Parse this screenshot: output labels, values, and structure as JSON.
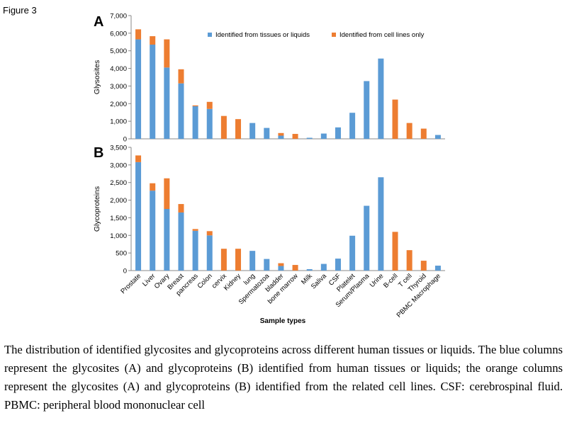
{
  "figure_label": "Figure 3",
  "caption": "The distribution of identified glycosites and glycoproteins across different human tissues or liquids. The blue columns represent the glycosites (A) and glycoproteins (B) identified from human tissues or liquids; the orange columns represent the glycosites (A) and glycoproteins (B) identified from the related cell lines. CSF: cerebrospinal fluid. PBMC: peripheral blood mononuclear cell",
  "colors": {
    "tissue": "#5b9bd5",
    "cell": "#ed7d31"
  },
  "chart_data": [
    {
      "panel": "A",
      "type": "bar",
      "stacked": true,
      "ylabel": "Glysosites",
      "xlabel": "",
      "ylim": [
        0,
        7000
      ],
      "yticks": [
        "0",
        "1,000",
        "2,000",
        "3,000",
        "4,000",
        "5,000",
        "6,000",
        "7,000"
      ],
      "legend_position": "top",
      "categories": [
        "Prostate",
        "Liver",
        "Ovary",
        "Breast",
        "pancreas",
        "Colon",
        "cervix",
        "Kidney",
        "lung",
        "Spermatozoa",
        "bladder",
        "bone marrow",
        "Milk",
        "Saliva",
        "CSF",
        "Platelet",
        "Serum/Plasma",
        "Urine",
        "B-cell",
        "T cell",
        "Thyroid",
        "PBMC Macrophage"
      ],
      "series": [
        {
          "name": "Identified from tissues or liquids",
          "values": [
            5650,
            5350,
            4050,
            3150,
            1850,
            1700,
            0,
            0,
            900,
            620,
            180,
            0,
            60,
            300,
            650,
            1480,
            3280,
            4560,
            0,
            0,
            0,
            220
          ]
        },
        {
          "name": "Identified from cell lines only",
          "values": [
            570,
            480,
            1600,
            800,
            50,
            400,
            1300,
            1120,
            0,
            0,
            150,
            280,
            0,
            0,
            0,
            0,
            0,
            0,
            2230,
            900,
            580,
            0
          ]
        }
      ]
    },
    {
      "panel": "B",
      "type": "bar",
      "stacked": true,
      "ylabel": "Glycoproteins",
      "xlabel": "Sample types",
      "ylim": [
        0,
        3500
      ],
      "yticks": [
        "0",
        "500",
        "1,000",
        "1,500",
        "2,000",
        "2,500",
        "3,000",
        "3,500"
      ],
      "categories": [
        "Prostate",
        "Liver",
        "Ovary",
        "Breast",
        "pancreas",
        "Colon",
        "cervix",
        "Kidney",
        "lung",
        "Spermatozoa",
        "bladder",
        "bone marrow",
        "Milk",
        "Saliva",
        "CSF",
        "Platelet",
        "Serum/Plasma",
        "Urine",
        "B-cell",
        "T cell",
        "Thyroid",
        "PBMC Macrophage"
      ],
      "series": [
        {
          "name": "Identified from tissues or liquids",
          "values": [
            3080,
            2270,
            1750,
            1650,
            1130,
            1000,
            0,
            0,
            560,
            330,
            130,
            0,
            40,
            190,
            340,
            990,
            1840,
            2650,
            0,
            0,
            0,
            140
          ]
        },
        {
          "name": "Identified from cell lines only",
          "values": [
            190,
            210,
            870,
            240,
            50,
            120,
            620,
            620,
            0,
            0,
            80,
            160,
            0,
            0,
            0,
            0,
            0,
            0,
            1100,
            580,
            280,
            0
          ]
        }
      ]
    }
  ]
}
